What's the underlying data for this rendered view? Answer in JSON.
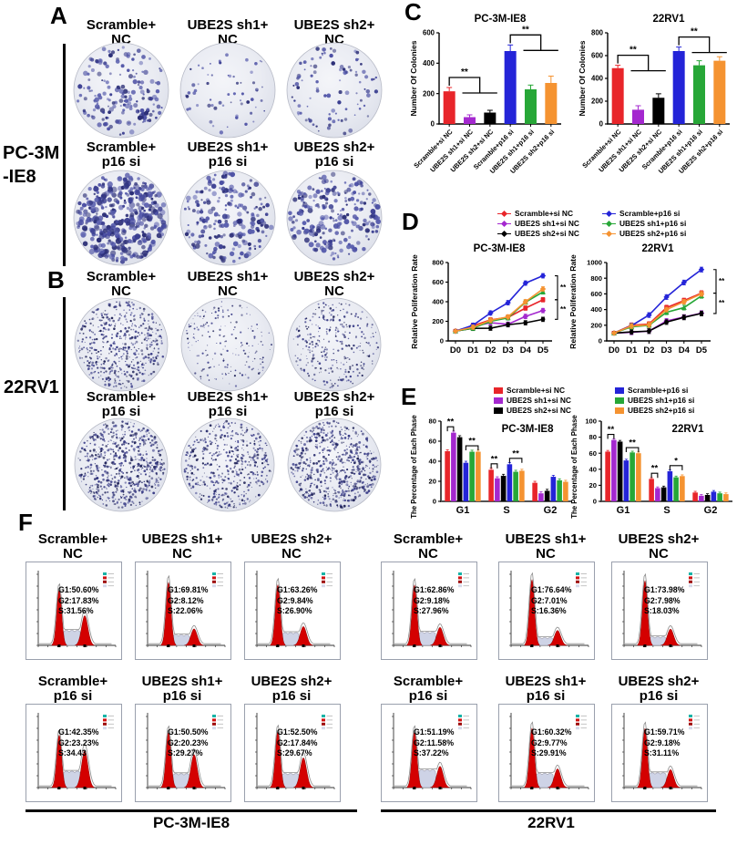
{
  "panels": {
    "a": "A",
    "b": "B",
    "c": "C",
    "d": "D",
    "e": "E",
    "f": "F"
  },
  "colors": {
    "red": "#e8252a",
    "purple": "#a428cf",
    "black": "#000000",
    "blue": "#2424d8",
    "green": "#27a737",
    "orange": "#f59331"
  },
  "panelA": {
    "row_label_line1": "PC-3M",
    "row_label_line2": "-IE8",
    "col_labels": [
      "Scramble+\nNC",
      "UBE2S sh1+\nNC",
      "UBE2S sh2+\nNC",
      "Scramble+\np16 si",
      "UBE2S sh1+\np16 si",
      "UBE2S sh2+\np16 si"
    ]
  },
  "panelB": {
    "row_label": "22RV1",
    "col_labels": [
      "Scramble+\nNC",
      "UBE2S sh1+\nNC",
      "UBE2S sh2+\nNC",
      "Scramble+\np16 si",
      "UBE2S sh1+\np16 si",
      "UBE2S sh2+\np16 si"
    ]
  },
  "legend_nc": [
    {
      "name": "Scramble+si NC",
      "color": "red"
    },
    {
      "name": "UBE2S sh1+si NC",
      "color": "purple"
    },
    {
      "name": "UBE2S sh2+si NC",
      "color": "black"
    }
  ],
  "legend_p16": [
    {
      "name": "Scramble+p16 si",
      "color": "blue"
    },
    {
      "name": "UBE2S sh1+p16 si",
      "color": "green"
    },
    {
      "name": "UBE2S sh2+p16 si",
      "color": "orange"
    }
  ],
  "chart_data": [
    {
      "id": "colonies-pc3m",
      "type": "bar",
      "title": "PC-3M-IE8",
      "ylabel": "Number Of Colonies",
      "ylim": [
        0,
        600
      ],
      "yticks": [
        0,
        200,
        400,
        600
      ],
      "categories": [
        "Scramble+si NC",
        "UBE2S sh1+si NC",
        "UBE2S sh2+si NC",
        "Scramble+p16 si",
        "UBE2S sh1+p16 si",
        "UBE2S sh2+p16 si"
      ],
      "values": [
        215,
        45,
        75,
        480,
        228,
        270
      ],
      "errors": [
        25,
        15,
        15,
        40,
        28,
        45
      ],
      "bar_colors": [
        "red",
        "purple",
        "black",
        "blue",
        "green",
        "orange"
      ],
      "significance": [
        {
          "from": 0,
          "pair": [
            1,
            2
          ],
          "label": "**"
        },
        {
          "from": 3,
          "pair": [
            4,
            5
          ],
          "label": "**"
        }
      ]
    },
    {
      "id": "colonies-22rv1",
      "type": "bar",
      "title": "22RV1",
      "ylabel": "Number Of Colonies",
      "ylim": [
        0,
        800
      ],
      "yticks": [
        0,
        200,
        400,
        600,
        800
      ],
      "categories": [
        "Scramble+si NC",
        "UBE2S sh1+si NC",
        "UBE2S sh2+si NC",
        "Scramble+p16 si",
        "UBE2S sh1+p16 si",
        "UBE2S sh2+p16 si"
      ],
      "values": [
        490,
        125,
        230,
        640,
        515,
        555
      ],
      "errors": [
        25,
        35,
        35,
        35,
        40,
        35
      ],
      "bar_colors": [
        "red",
        "purple",
        "black",
        "blue",
        "green",
        "orange"
      ],
      "significance": [
        {
          "from": 0,
          "pair": [
            1,
            2
          ],
          "label": "**"
        },
        {
          "from": 3,
          "pair": [
            4,
            5
          ],
          "label": "**"
        }
      ]
    },
    {
      "id": "prolif-pc3m",
      "type": "line",
      "title": "PC-3M-IE8",
      "ylabel": "Relative Poliferation Rate",
      "x": [
        "D0",
        "D1",
        "D2",
        "D3",
        "D4",
        "D5"
      ],
      "ylim": [
        0,
        800
      ],
      "yticks": [
        0,
        200,
        400,
        600,
        800
      ],
      "error": 22,
      "series": [
        {
          "name": "Scramble+si NC",
          "color": "red",
          "values": [
            100,
            155,
            215,
            240,
            335,
            420
          ]
        },
        {
          "name": "UBE2S sh1+si NC",
          "color": "purple",
          "values": [
            100,
            148,
            185,
            170,
            250,
            310
          ]
        },
        {
          "name": "UBE2S sh2+si NC",
          "color": "black",
          "values": [
            100,
            128,
            130,
            165,
            185,
            220
          ]
        },
        {
          "name": "Scramble+p16 si",
          "color": "blue",
          "values": [
            100,
            160,
            285,
            390,
            590,
            665
          ]
        },
        {
          "name": "UBE2S sh1+p16 si",
          "color": "green",
          "values": [
            100,
            130,
            200,
            235,
            395,
            500
          ]
        },
        {
          "name": "UBE2S sh2+p16 si",
          "color": "orange",
          "values": [
            100,
            140,
            210,
            245,
            400,
            530
          ]
        }
      ],
      "brackets": [
        {
          "y1": 665,
          "y2": 420,
          "label": "**"
        },
        {
          "y1": 420,
          "y2": 220,
          "label": "**"
        }
      ]
    },
    {
      "id": "prolif-22rv1",
      "type": "line",
      "title": "22RV1",
      "ylabel": "Relative Poliferation Rate",
      "x": [
        "D0",
        "D1",
        "D2",
        "D3",
        "D4",
        "D5"
      ],
      "ylim": [
        0,
        1000
      ],
      "yticks": [
        0,
        200,
        400,
        600,
        800,
        1000
      ],
      "error": 30,
      "series": [
        {
          "name": "Scramble+si NC",
          "color": "red",
          "values": [
            100,
            200,
            215,
            425,
            515,
            610
          ]
        },
        {
          "name": "UBE2S sh1+si NC",
          "color": "purple",
          "values": [
            100,
            110,
            125,
            255,
            305,
            355
          ]
        },
        {
          "name": "UBE2S sh2+si NC",
          "color": "black",
          "values": [
            100,
            115,
            125,
            240,
            300,
            350
          ]
        },
        {
          "name": "Scramble+p16 si",
          "color": "blue",
          "values": [
            100,
            195,
            330,
            560,
            745,
            910
          ]
        },
        {
          "name": "UBE2S sh1+p16 si",
          "color": "green",
          "values": [
            100,
            180,
            200,
            365,
            425,
            575
          ]
        },
        {
          "name": "UBE2S sh2+p16 si",
          "color": "orange",
          "values": [
            100,
            190,
            205,
            400,
            500,
            600
          ]
        }
      ],
      "brackets": [
        {
          "y1": 910,
          "y2": 610,
          "label": "**"
        },
        {
          "y1": 610,
          "y2": 350,
          "label": "**"
        }
      ]
    },
    {
      "id": "phase-pc3m",
      "type": "bar-grouped",
      "title": "PC-3M-IE8",
      "ylabel": "The Percentage of Each Phase",
      "categories": [
        "G1",
        "S",
        "G2"
      ],
      "ylim": [
        0,
        80
      ],
      "yticks": [
        0,
        20,
        40,
        60,
        80
      ],
      "error": 1.5,
      "series": [
        {
          "name": "Scramble+si NC",
          "color": "red",
          "values": [
            50,
            31.5,
            18.5
          ]
        },
        {
          "name": "UBE2S sh1+si NC",
          "color": "purple",
          "values": [
            68.5,
            23,
            8
          ]
        },
        {
          "name": "UBE2S sh2+si NC",
          "color": "black",
          "values": [
            64,
            25.5,
            10.5
          ]
        },
        {
          "name": "Scramble+p16 si",
          "color": "blue",
          "values": [
            38.5,
            37,
            24.5
          ]
        },
        {
          "name": "UBE2S sh1+p16 si",
          "color": "green",
          "values": [
            49.5,
            29.5,
            21
          ]
        },
        {
          "name": "UBE2S sh2+p16 si",
          "color": "orange",
          "values": [
            49.5,
            30.5,
            19.5
          ]
        }
      ],
      "significance": [
        {
          "cat": 0,
          "bars": [
            0,
            1
          ],
          "label": "**"
        },
        {
          "cat": 0,
          "bars": [
            3,
            5
          ],
          "label": "**"
        },
        {
          "cat": 1,
          "bars": [
            0,
            1
          ],
          "label": "**"
        },
        {
          "cat": 1,
          "bars": [
            3,
            5
          ],
          "label": "**"
        }
      ]
    },
    {
      "id": "phase-22rv1",
      "type": "bar-grouped",
      "title": "22RV1",
      "ylabel": "The Percentage of Each Phase",
      "categories": [
        "G1",
        "S",
        "G2"
      ],
      "ylim": [
        0,
        100
      ],
      "yticks": [
        0,
        20,
        40,
        60,
        80,
        100
      ],
      "error": 1.5,
      "series": [
        {
          "name": "Scramble+si NC",
          "color": "red",
          "values": [
            62,
            28,
            11
          ]
        },
        {
          "name": "UBE2S sh1+si NC",
          "color": "purple",
          "values": [
            76.5,
            16.5,
            7
          ]
        },
        {
          "name": "UBE2S sh2+si NC",
          "color": "black",
          "values": [
            74.5,
            17.5,
            8
          ]
        },
        {
          "name": "Scramble+p16 si",
          "color": "blue",
          "values": [
            51,
            37.5,
            12
          ]
        },
        {
          "name": "UBE2S sh1+p16 si",
          "color": "green",
          "values": [
            61,
            30,
            10
          ]
        },
        {
          "name": "UBE2S sh2+p16 si",
          "color": "orange",
          "values": [
            60,
            31.5,
            9
          ]
        }
      ],
      "significance": [
        {
          "cat": 0,
          "bars": [
            0,
            1
          ],
          "label": "**"
        },
        {
          "cat": 0,
          "bars": [
            3,
            5
          ],
          "label": "**"
        },
        {
          "cat": 1,
          "bars": [
            0,
            1
          ],
          "label": "**"
        },
        {
          "cat": 1,
          "bars": [
            3,
            5
          ],
          "label": "*"
        }
      ]
    }
  ],
  "panelF": {
    "groups": [
      {
        "cell_line": "PC-3M-IE8",
        "plots": [
          {
            "label": "Scramble+\nNC",
            "lines": [
              "G1:50.60%",
              "G2:17.83%",
              "S:31.56%"
            ]
          },
          {
            "label": "UBE2S sh1+\nNC",
            "lines": [
              "G1:69.81%",
              "G2:8.12%",
              "S:22.06%"
            ]
          },
          {
            "label": "UBE2S sh2+\nNC",
            "lines": [
              "G1:63.26%",
              "G2:9.84%",
              "S:26.90%"
            ]
          },
          {
            "label": "Scramble+\np16 si",
            "lines": [
              "G1:42.35%",
              "G2:23.23%",
              "S:34.43"
            ]
          },
          {
            "label": "UBE2S sh1+\np16 si",
            "lines": [
              "G1:50.50%",
              "G2:20.23%",
              "S:29.27%"
            ]
          },
          {
            "label": "UBE2S sh2+\np16 si",
            "lines": [
              "G1:52.50%",
              "G2:17.84%",
              "S:29.67%"
            ]
          }
        ]
      },
      {
        "cell_line": "22RV1",
        "plots": [
          {
            "label": "Scramble+\nNC",
            "lines": [
              "G1:62.86%",
              "G2:9.18%",
              "S:27.96%"
            ]
          },
          {
            "label": "UBE2S sh1+\nNC",
            "lines": [
              "G1:76.64%",
              "G2:7.01%",
              "S:16.36%"
            ]
          },
          {
            "label": "UBE2S sh2+\nNC",
            "lines": [
              "G1:73.98%",
              "G2:7.98%",
              "S:18.03%"
            ]
          },
          {
            "label": "Scramble+\np16 si",
            "lines": [
              "G1:51.19%",
              "G2:11.58%",
              "S:37.22%"
            ]
          },
          {
            "label": "UBE2S sh1+\np16 si",
            "lines": [
              "G1:60.32%",
              "G2:9.77%",
              "S:29.91%"
            ]
          },
          {
            "label": "UBE2S sh2+\np16 si",
            "lines": [
              "G1:59.71%",
              "G2:9.18%",
              "S:31.11%"
            ]
          }
        ]
      }
    ]
  }
}
